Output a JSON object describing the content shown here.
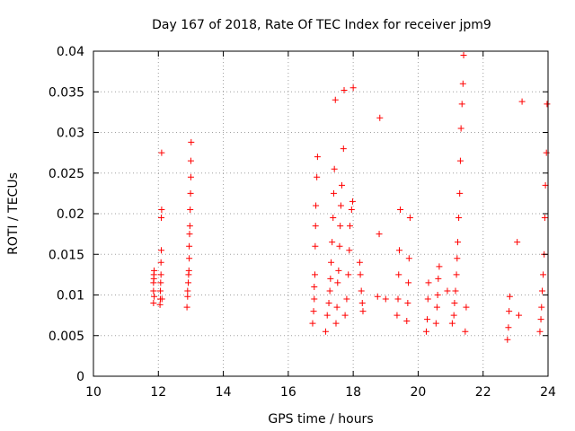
{
  "chart_data": {
    "type": "scatter",
    "title": "Day 167 of 2018, Rate Of TEC Index for receiver jpm9",
    "xlabel": "GPS time / hours",
    "ylabel": "ROTI / TECUs",
    "xlim": [
      10,
      24
    ],
    "ylim": [
      0,
      0.04
    ],
    "x_ticks": [
      10,
      12,
      14,
      16,
      18,
      20,
      22,
      24
    ],
    "x_tick_labels": [
      "10",
      "12",
      "14",
      "16",
      "18",
      "20",
      "22",
      "24"
    ],
    "y_ticks": [
      0,
      0.005,
      0.01,
      0.015,
      0.02,
      0.025,
      0.03,
      0.035,
      0.04
    ],
    "y_tick_labels": [
      "0",
      "0.005",
      "0.01",
      "0.015",
      "0.02",
      "0.025",
      "0.03",
      "0.035",
      "0.04"
    ],
    "grid": true,
    "marker": "+",
    "series": [
      {
        "name": "ROTI",
        "color": "#ff0000",
        "x": [
          11.85,
          11.85,
          11.85,
          11.86,
          11.86,
          11.87,
          11.87,
          12.05,
          12.06,
          12.06,
          12.07,
          12.08,
          12.08,
          12.09,
          12.09,
          12.1,
          12.1,
          12.11,
          12.88,
          12.9,
          12.9,
          12.92,
          12.93,
          12.94,
          12.95,
          12.95,
          12.96,
          12.97,
          12.98,
          12.99,
          13.0,
          13.0,
          13.01,
          16.75,
          16.78,
          16.8,
          16.8,
          16.82,
          16.83,
          16.84,
          16.85,
          16.88,
          16.9,
          17.15,
          17.2,
          17.25,
          17.28,
          17.3,
          17.32,
          17.35,
          17.38,
          17.4,
          17.42,
          17.45,
          17.47,
          17.5,
          17.52,
          17.55,
          17.58,
          17.6,
          17.62,
          17.65,
          17.7,
          17.72,
          17.75,
          17.8,
          17.85,
          17.88,
          17.9,
          17.95,
          17.98,
          18.0,
          18.2,
          18.22,
          18.25,
          18.28,
          18.3,
          18.75,
          18.8,
          18.82,
          19.0,
          19.35,
          19.38,
          19.4,
          19.42,
          19.45,
          19.65,
          19.68,
          19.7,
          19.72,
          19.75,
          20.25,
          20.28,
          20.3,
          20.32,
          20.55,
          20.58,
          20.6,
          20.62,
          20.65,
          20.9,
          21.05,
          21.1,
          21.12,
          21.15,
          21.18,
          21.2,
          21.22,
          21.25,
          21.28,
          21.3,
          21.32,
          21.35,
          21.38,
          21.4,
          21.45,
          21.48,
          22.75,
          22.78,
          22.8,
          22.82,
          23.05,
          23.1,
          23.2,
          23.75,
          23.78,
          23.8,
          23.82,
          23.85,
          23.88,
          23.9,
          23.92,
          23.95,
          23.97
        ],
        "y": [
          0.009,
          0.0105,
          0.0115,
          0.012,
          0.0125,
          0.013,
          0.0098,
          0.0088,
          0.0095,
          0.0105,
          0.0115,
          0.0125,
          0.014,
          0.0155,
          0.0195,
          0.0205,
          0.0275,
          0.0095,
          0.0085,
          0.0098,
          0.0105,
          0.0115,
          0.0125,
          0.013,
          0.0145,
          0.016,
          0.0175,
          0.0185,
          0.0205,
          0.0225,
          0.0245,
          0.0265,
          0.0288,
          0.0065,
          0.008,
          0.0095,
          0.011,
          0.0125,
          0.016,
          0.0185,
          0.021,
          0.0245,
          0.027,
          0.0055,
          0.0075,
          0.009,
          0.0105,
          0.012,
          0.014,
          0.0165,
          0.0195,
          0.0225,
          0.0255,
          0.034,
          0.0065,
          0.0085,
          0.0115,
          0.013,
          0.016,
          0.0185,
          0.021,
          0.0235,
          0.028,
          0.0352,
          0.0075,
          0.0095,
          0.0125,
          0.0155,
          0.0185,
          0.0205,
          0.0215,
          0.0355,
          0.014,
          0.0125,
          0.0105,
          0.009,
          0.008,
          0.0098,
          0.0175,
          0.0318,
          0.0095,
          0.0075,
          0.0095,
          0.0125,
          0.0155,
          0.0205,
          0.0068,
          0.009,
          0.0115,
          0.0145,
          0.0195,
          0.0055,
          0.007,
          0.0095,
          0.0115,
          0.0065,
          0.0085,
          0.01,
          0.012,
          0.0135,
          0.0105,
          0.0065,
          0.0075,
          0.009,
          0.0105,
          0.0125,
          0.0145,
          0.0165,
          0.0195,
          0.0225,
          0.0265,
          0.0305,
          0.0335,
          0.036,
          0.0395,
          0.0055,
          0.0085,
          0.0045,
          0.006,
          0.008,
          0.0098,
          0.0165,
          0.0075,
          0.0338,
          0.0055,
          0.007,
          0.0085,
          0.0105,
          0.0125,
          0.015,
          0.0195,
          0.0235,
          0.0275,
          0.0335
        ]
      }
    ]
  }
}
